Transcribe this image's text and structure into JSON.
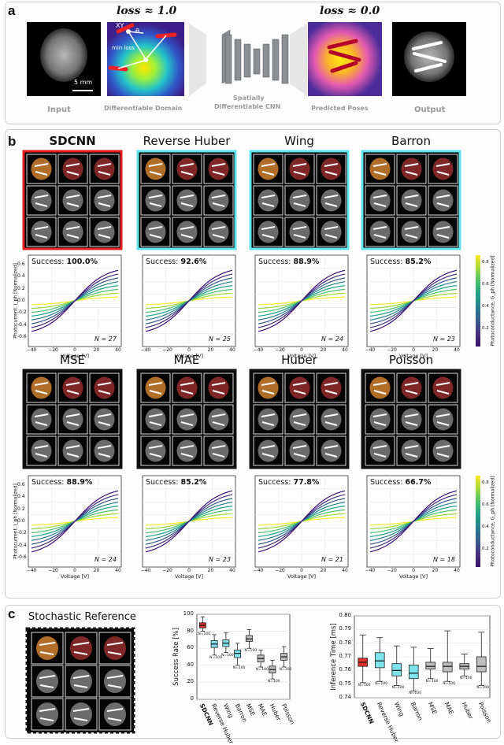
{
  "panel_a": {
    "label": "a",
    "loss_high": "loss ≈ 1.0",
    "loss_low": "loss ≈ 0.0",
    "scale_bar": "5 mm",
    "xy_label": "XY",
    "theta_label": "θ",
    "min_loss_label": "min loss",
    "captions": {
      "input": "Input",
      "domain": "Differentiable Domain",
      "cnn_line1": "Spatially",
      "cnn_line2": "Differentiable CNN",
      "poses": "Predicted Poses",
      "output": "Output"
    }
  },
  "panel_b": {
    "label": "b",
    "success_prefix": "Success:",
    "xlabel": "Voltage [V]",
    "ylabel": "Photocurrent, I_ph [Normalized]",
    "colorbar_label": "Photoconductance, G_ph [Normalized]",
    "xticks": [
      "−40",
      "−20",
      "0",
      "20",
      "40"
    ],
    "yticks": [
      "0.6",
      "0.4",
      "0.2",
      "0.0",
      "-0.2",
      "-0.4",
      "-0.6"
    ],
    "cbar_ticks": [
      "0.8",
      "0.6",
      "0.4",
      "0.2"
    ],
    "rows": [
      [
        {
          "name": "SDCNN",
          "success": "100.0%",
          "n": "N = 27",
          "frame": "#e02020"
        },
        {
          "name": "Reverse Huber",
          "success": "92.6%",
          "n": "N = 25",
          "frame": "#5ee3ea"
        },
        {
          "name": "Wing",
          "success": "88.9%",
          "n": "N = 24",
          "frame": "#5ee3ea"
        },
        {
          "name": "Barron",
          "success": "85.2%",
          "n": "N = 23",
          "frame": "#5ee3ea"
        }
      ],
      [
        {
          "name": "MSE",
          "success": "88.9%",
          "n": "N = 24",
          "frame": "#111111"
        },
        {
          "name": "MAE",
          "success": "85.2%",
          "n": "N = 23",
          "frame": "#111111"
        },
        {
          "name": "Huber",
          "success": "77.8%",
          "n": "N = 21",
          "frame": "#111111"
        },
        {
          "name": "Poisson",
          "success": "66.7%",
          "n": "N = 18",
          "frame": "#111111"
        }
      ]
    ]
  },
  "panel_c": {
    "label": "c",
    "title": "Stochastic Reference"
  },
  "chart_data": [
    {
      "type": "box",
      "ylabel": "Success Rate [%]",
      "ylim": [
        0,
        100
      ],
      "yticks": [
        "0",
        "20",
        "40",
        "60",
        "80",
        "100"
      ],
      "categories": [
        "SDCNN",
        "Reverse Huber",
        "Wing",
        "Barron",
        "MSE",
        "MAE",
        "Huber",
        "Poisson"
      ],
      "medians": [
        87,
        65,
        66,
        54,
        71,
        48,
        35,
        50
      ],
      "q1": [
        84,
        61,
        62,
        49,
        68,
        44,
        31,
        46
      ],
      "q3": [
        90,
        69,
        70,
        58,
        75,
        52,
        39,
        54
      ],
      "whisker_low": [
        80,
        52,
        55,
        40,
        60,
        38,
        24,
        38
      ],
      "whisker_high": [
        97,
        76,
        78,
        66,
        82,
        58,
        46,
        62
      ],
      "n_label": "N=100",
      "colors": [
        "#e03030",
        "#7fe3ee",
        "#7fe3ee",
        "#7fe3ee",
        "#bdbdbd",
        "#bdbdbd",
        "#bdbdbd",
        "#bdbdbd"
      ]
    },
    {
      "type": "box",
      "ylabel": "Inference Time [ms]",
      "ylim": [
        0.74,
        0.8
      ],
      "yticks": [
        "0.74",
        "0.75",
        "0.76",
        "0.77",
        "0.78",
        "0.79",
        "0.80"
      ],
      "categories": [
        "SDCNN",
        "Reverse Huber",
        "Wing",
        "Barron",
        "MSE",
        "MAE",
        "Huber",
        "Poisson"
      ],
      "medians": [
        0.766,
        0.767,
        0.76,
        0.758,
        0.763,
        0.763,
        0.763,
        0.763
      ],
      "q1": [
        0.763,
        0.762,
        0.756,
        0.754,
        0.761,
        0.759,
        0.761,
        0.759
      ],
      "q3": [
        0.769,
        0.773,
        0.765,
        0.764,
        0.766,
        0.766,
        0.765,
        0.77
      ],
      "whisker_low": [
        0.751,
        0.752,
        0.749,
        0.745,
        0.754,
        0.752,
        0.756,
        0.749
      ],
      "whisker_high": [
        0.786,
        0.784,
        0.778,
        0.777,
        0.776,
        0.789,
        0.772,
        0.788
      ],
      "n_label": "N=100",
      "colors": [
        "#e03030",
        "#7fe3ee",
        "#7fe3ee",
        "#7fe3ee",
        "#bdbdbd",
        "#bdbdbd",
        "#bdbdbd",
        "#bdbdbd"
      ]
    }
  ]
}
